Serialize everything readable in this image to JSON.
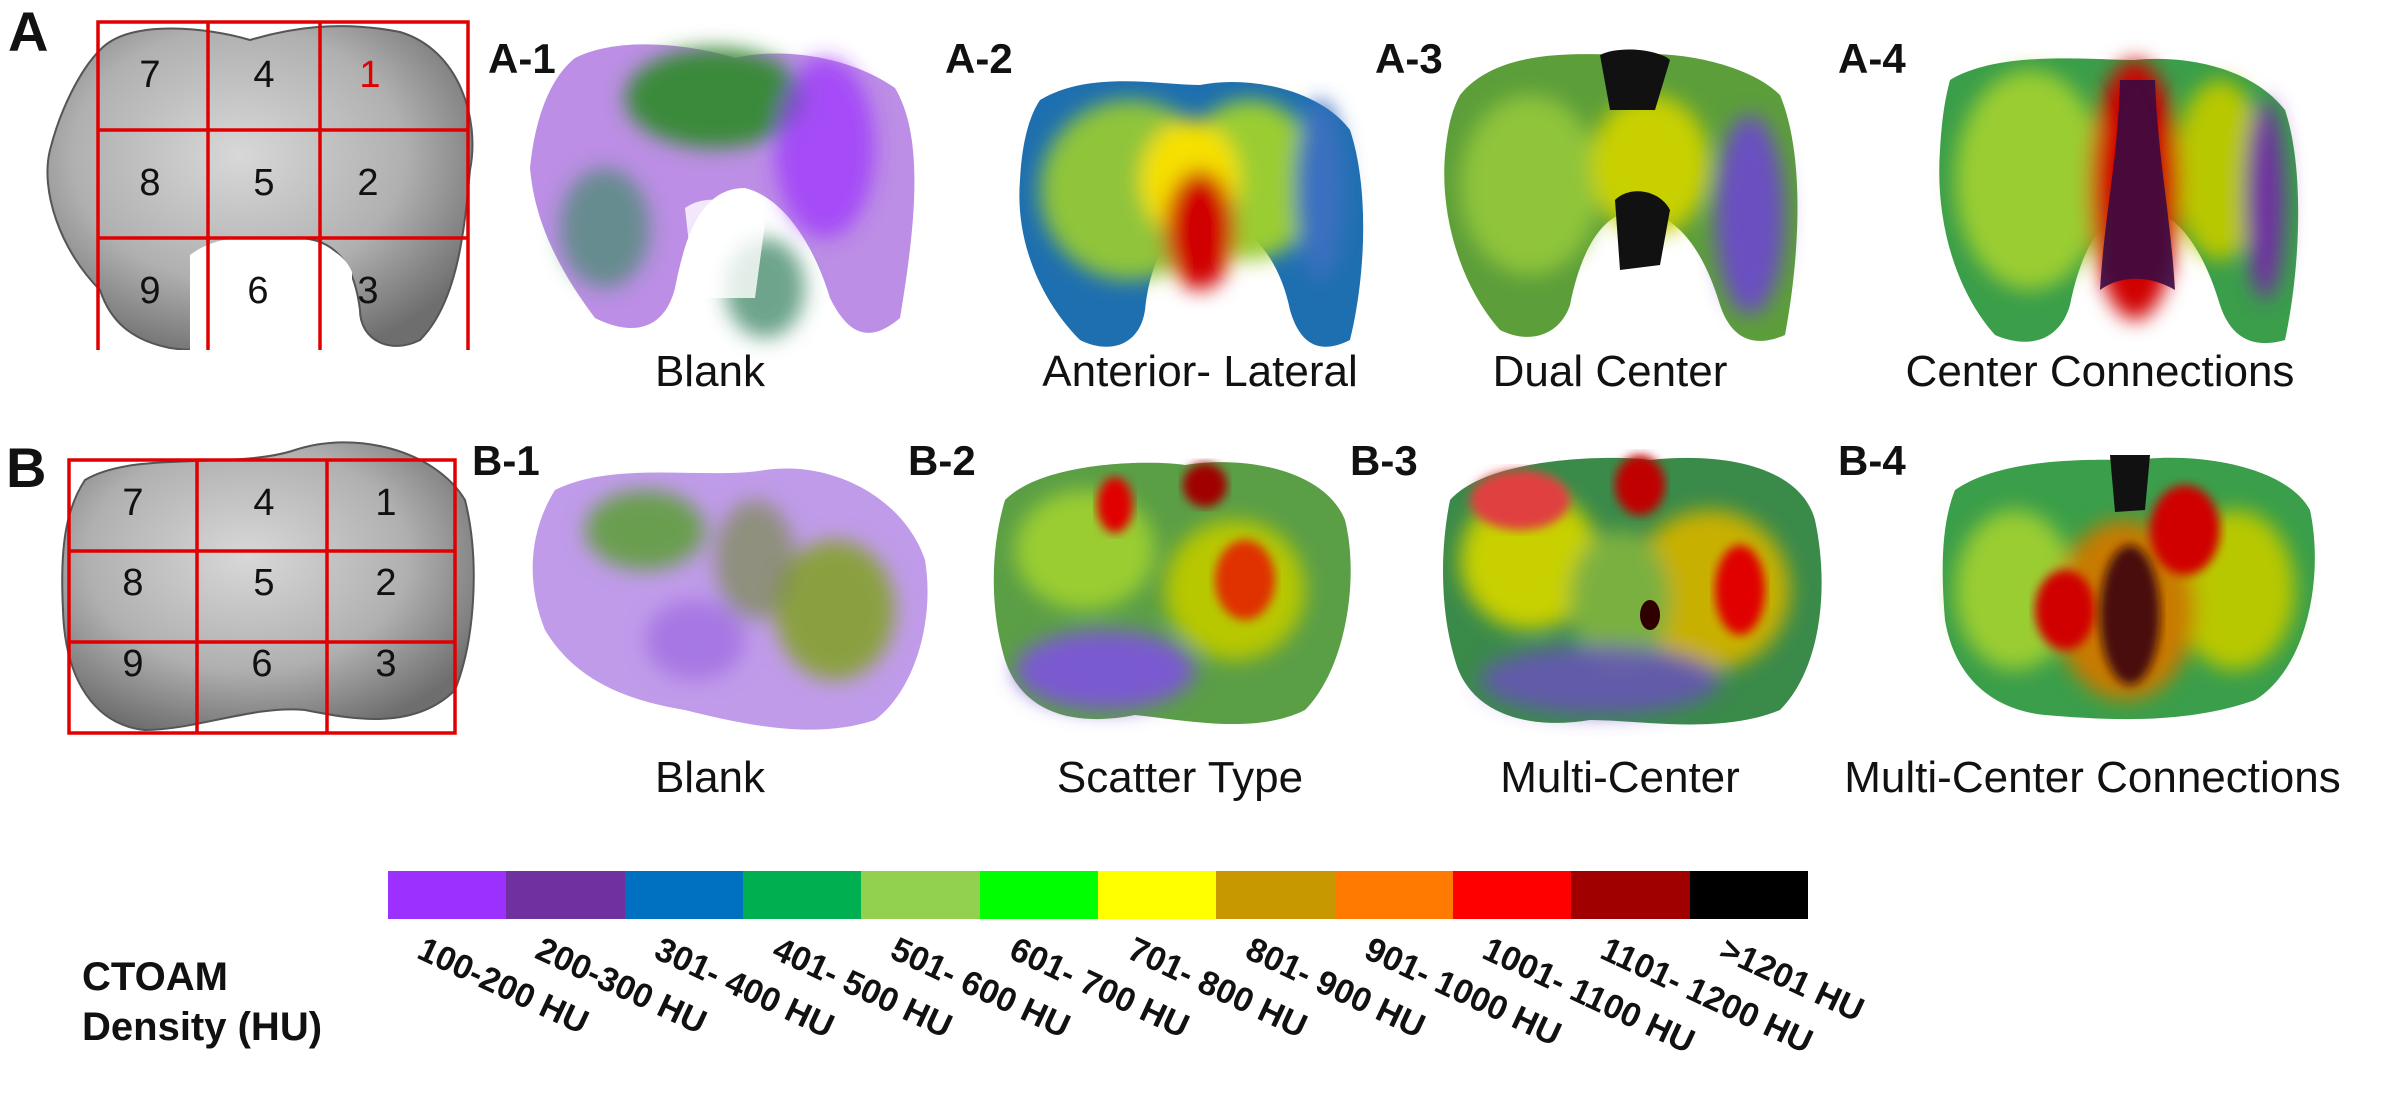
{
  "panels": {
    "A": {
      "letter": "A",
      "zones": [
        "1",
        "2",
        "3",
        "4",
        "5",
        "6",
        "7",
        "8",
        "9"
      ],
      "maps": [
        {
          "label": "A-1",
          "caption": "Blank"
        },
        {
          "label": "A-2",
          "caption": "Anterior- Lateral"
        },
        {
          "label": "A-3",
          "caption": "Dual Center"
        },
        {
          "label": "A-4",
          "caption": "Center Connections"
        }
      ]
    },
    "B": {
      "letter": "B",
      "zones": [
        "1",
        "2",
        "3",
        "4",
        "5",
        "6",
        "7",
        "8",
        "9"
      ],
      "maps": [
        {
          "label": "B-1",
          "caption": "Blank"
        },
        {
          "label": "B-2",
          "caption": "Scatter Type"
        },
        {
          "label": "B-3",
          "caption": "Multi-Center"
        },
        {
          "label": "B-4",
          "caption": "Multi-Center Connections"
        }
      ]
    }
  },
  "legend": {
    "title_line1": "CTOAM",
    "title_line2": "Density (HU)",
    "bins": [
      {
        "label": "100-200 HU",
        "color": "#9b30ff"
      },
      {
        "label": "200-300 HU",
        "color": "#7030a0"
      },
      {
        "label": "301- 400 HU",
        "color": "#0070c0"
      },
      {
        "label": "401- 500 HU",
        "color": "#00b050"
      },
      {
        "label": "501- 600 HU",
        "color": "#92d050"
      },
      {
        "label": "601- 700 HU",
        "color": "#00ff00"
      },
      {
        "label": "701- 800 HU",
        "color": "#ffff00"
      },
      {
        "label": "801- 900 HU",
        "color": "#c89800"
      },
      {
        "label": "901- 1000 HU",
        "color": "#ff7a00"
      },
      {
        "label": "1001- 1100 HU",
        "color": "#ff0000"
      },
      {
        "label": "1101- 1200 HU",
        "color": "#a00000"
      },
      {
        "label": ">1201 HU",
        "color": "#000000"
      }
    ]
  }
}
